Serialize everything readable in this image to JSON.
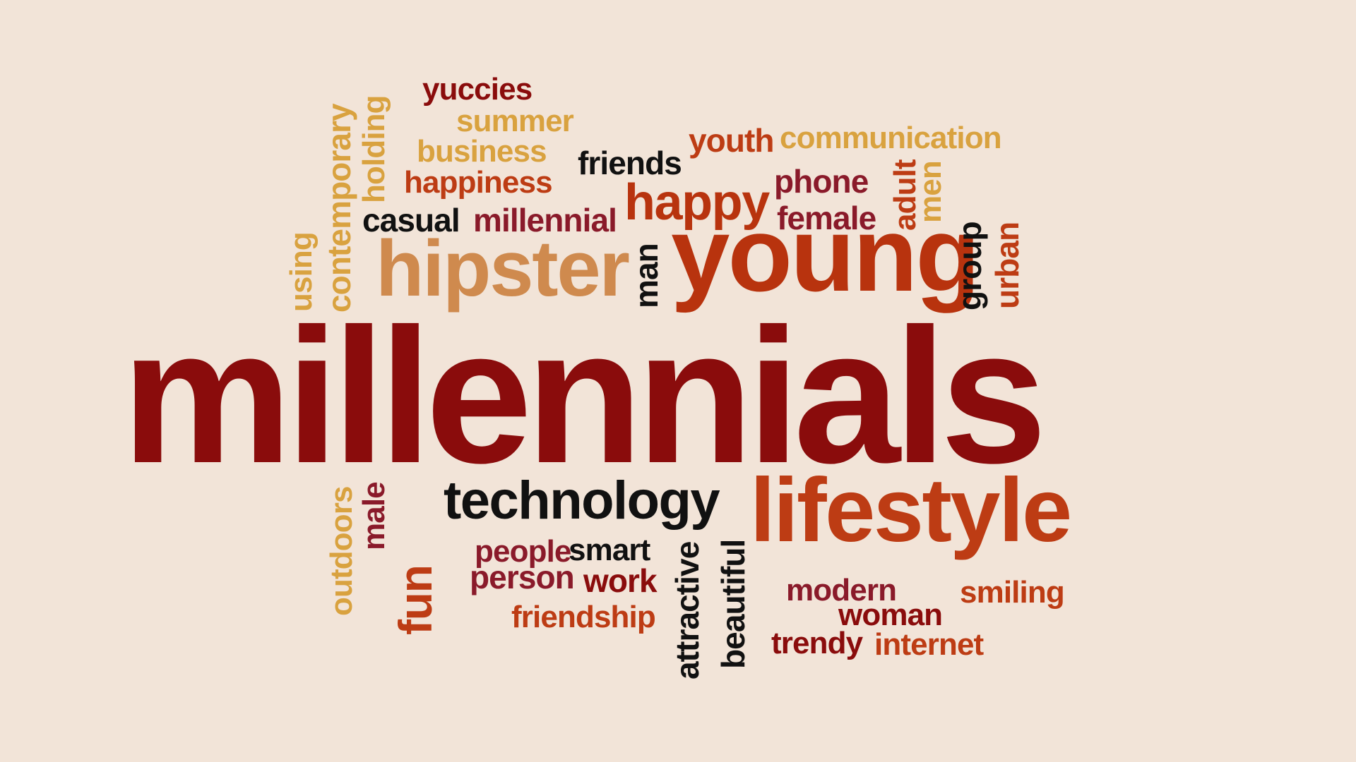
{
  "words": [
    {
      "key": "millennials",
      "text": "millennials",
      "color": "#8a0c0c"
    },
    {
      "key": "young",
      "text": "young",
      "color": "#b8330e"
    },
    {
      "key": "hipster",
      "text": "hipster",
      "color": "#cf8a4e"
    },
    {
      "key": "lifestyle",
      "text": "lifestyle",
      "color": "#bd3c14"
    },
    {
      "key": "technology",
      "text": "technology",
      "color": "#111111"
    },
    {
      "key": "happy",
      "text": "happy",
      "color": "#b8330e"
    },
    {
      "key": "yuccies",
      "text": "yuccies",
      "color": "#8a0c0c"
    },
    {
      "key": "summer",
      "text": "summer",
      "color": "#d9a23f"
    },
    {
      "key": "business",
      "text": "business",
      "color": "#d9a23f"
    },
    {
      "key": "happiness",
      "text": "happiness",
      "color": "#bd3c14"
    },
    {
      "key": "friends",
      "text": "friends",
      "color": "#111111"
    },
    {
      "key": "youth",
      "text": "youth",
      "color": "#bd3c14"
    },
    {
      "key": "communication",
      "text": "communication",
      "color": "#d9a23f"
    },
    {
      "key": "phone",
      "text": "phone",
      "color": "#8a1a2a"
    },
    {
      "key": "female",
      "text": "female",
      "color": "#8a1a2a"
    },
    {
      "key": "casual",
      "text": "casual",
      "color": "#111111"
    },
    {
      "key": "millennial",
      "text": "millennial",
      "color": "#8a1a2a"
    },
    {
      "key": "contemporary",
      "text": "contemporary",
      "color": "#d9a23f"
    },
    {
      "key": "holding",
      "text": "holding",
      "color": "#d9a23f"
    },
    {
      "key": "using",
      "text": "using",
      "color": "#d9a23f"
    },
    {
      "key": "man",
      "text": "man",
      "color": "#111111"
    },
    {
      "key": "adult",
      "text": "adult",
      "color": "#bd3c14"
    },
    {
      "key": "men",
      "text": "men",
      "color": "#d9a23f"
    },
    {
      "key": "group",
      "text": "group",
      "color": "#111111"
    },
    {
      "key": "urban",
      "text": "urban",
      "color": "#bd3c14"
    },
    {
      "key": "outdoors",
      "text": "outdoors",
      "color": "#d9a23f"
    },
    {
      "key": "male",
      "text": "male",
      "color": "#8a1a2a"
    },
    {
      "key": "people",
      "text": "people",
      "color": "#bd3c14"
    },
    {
      "key": "fun",
      "text": "fun",
      "color": "#8a1a2a"
    },
    {
      "key": "smart",
      "text": "smart",
      "color": "#111111"
    },
    {
      "key": "person",
      "text": "person",
      "color": "#8a1a2a"
    },
    {
      "key": "work",
      "text": "work",
      "color": "#8a0c0c"
    },
    {
      "key": "friendship",
      "text": "friendship",
      "color": "#bd3c14"
    },
    {
      "key": "attractive",
      "text": "attractive",
      "color": "#111111"
    },
    {
      "key": "beautiful",
      "text": "beautiful",
      "color": "#111111"
    },
    {
      "key": "modern",
      "text": "modern",
      "color": "#8a1a2a"
    },
    {
      "key": "woman",
      "text": "woman",
      "color": "#8a0c0c"
    },
    {
      "key": "smiling",
      "text": "smiling",
      "color": "#bd3c14"
    },
    {
      "key": "trendy",
      "text": "trendy",
      "color": "#8a0c0c"
    },
    {
      "key": "internet",
      "text": "internet",
      "color": "#bd3c14"
    }
  ]
}
